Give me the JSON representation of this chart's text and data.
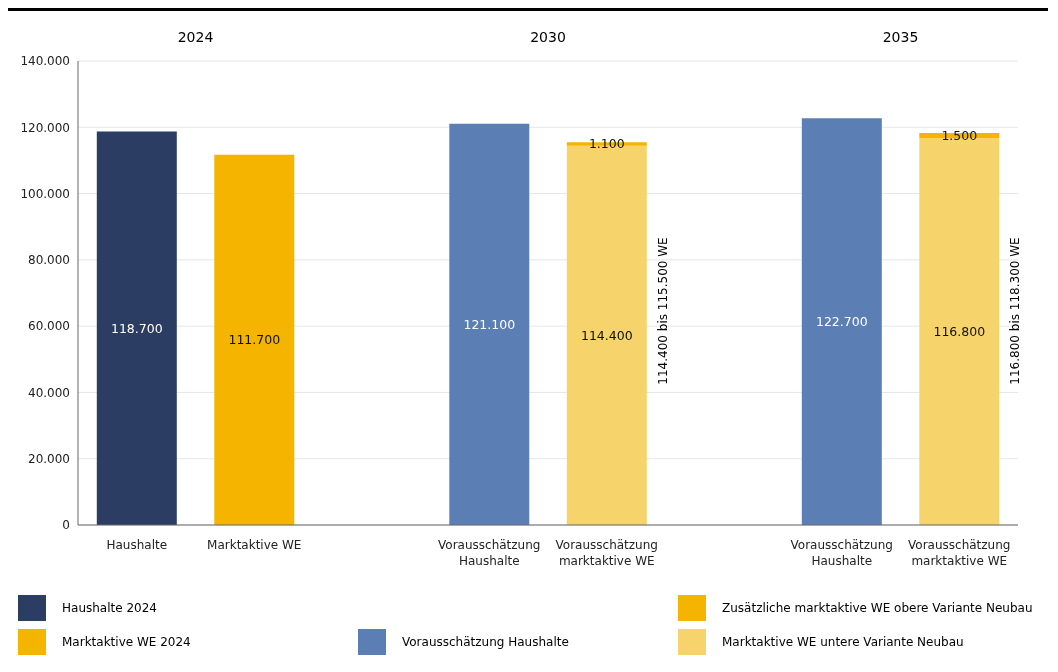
{
  "chart_data": {
    "type": "bar",
    "stacked": true,
    "categories": [
      "Haushalte",
      "Marktaktive WE",
      null,
      "Vorausschätzung Haushalte",
      "Vorausschätzung marktaktive WE",
      null,
      "Vorausschätzung Haushalte",
      "Vorausschätzung marktaktive WE"
    ],
    "series": [
      {
        "name": "Haushalte 2024",
        "color": "#2b3d63",
        "values": [
          118700,
          null,
          null,
          null,
          null,
          null,
          null,
          null
        ],
        "value_labels": [
          "118.700",
          null,
          null,
          null,
          null,
          null,
          null,
          null
        ]
      },
      {
        "name": "Marktaktive WE 2024",
        "color": "#f5b400",
        "values": [
          null,
          111700,
          null,
          null,
          null,
          null,
          null,
          null
        ],
        "value_labels": [
          null,
          "111.700",
          null,
          null,
          null,
          null,
          null,
          null
        ]
      },
      {
        "name": "Vorausschätzung Haushalte",
        "color": "#5b7fb5",
        "values": [
          null,
          null,
          null,
          121100,
          null,
          null,
          122700,
          null
        ],
        "value_labels": [
          null,
          null,
          null,
          "121.100",
          null,
          null,
          "122.700",
          null
        ]
      },
      {
        "name": "Marktaktive WE untere Variante Neubau",
        "color": "#f7d36c",
        "values": [
          null,
          null,
          null,
          null,
          114400,
          null,
          null,
          116800
        ],
        "value_labels": [
          null,
          null,
          null,
          null,
          "114.400",
          null,
          null,
          "116.800"
        ]
      },
      {
        "name": "Zusätzliche marktaktive WE obere Variante Neubau",
        "color": "#f5b400",
        "values": [
          null,
          null,
          null,
          null,
          1100,
          null,
          null,
          1500
        ],
        "value_labels": [
          null,
          null,
          null,
          null,
          "1.100",
          null,
          null,
          "1.500"
        ]
      }
    ],
    "ylim": [
      0,
      140000
    ],
    "yticks": [
      0,
      {
        "value": 20000,
        "label": "20.000"
      },
      {
        "value": 40000,
        "label": "40.000"
      },
      {
        "value": 60000,
        "label": "60.000"
      },
      {
        "value": 80000,
        "label": "80.000"
      },
      {
        "value": 100000,
        "label": "100.000"
      },
      {
        "value": 120000,
        "label": "120.000"
      },
      {
        "value": 140000,
        "label": "140.000"
      }
    ],
    "grid": "y",
    "legend": "bottom",
    "annotations": [
      "2024",
      "2030",
      "2035",
      "114.400 bis 115.500 WE",
      "116.800 bis 118.300 WE"
    ]
  }
}
